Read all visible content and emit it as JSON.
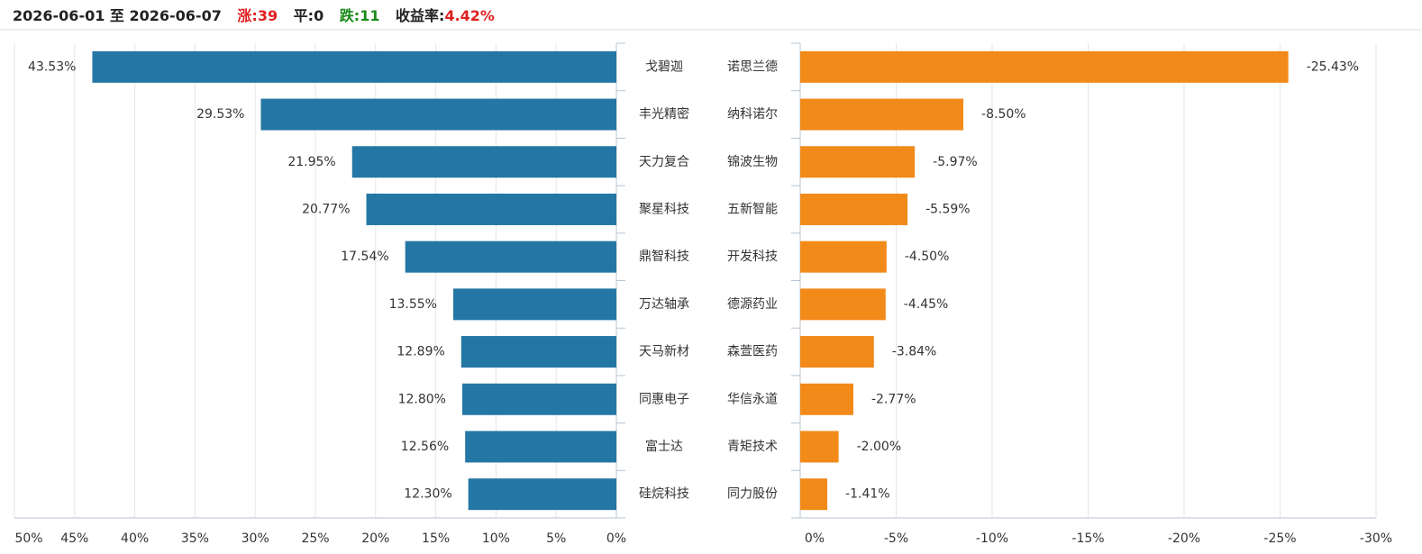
{
  "header": {
    "date_range": "2026-06-01 至 2026-06-07",
    "up": "涨:39",
    "flat": "平:0",
    "down": "跌:11",
    "return_label": "收益率:",
    "return_value": "4.42%"
  },
  "chart_data": [
    {
      "type": "bar",
      "orientation": "horizontal",
      "color": "#2477a4",
      "grid": true,
      "categories": [
        "戈碧迦",
        "丰光精密",
        "天力复合",
        "聚星科技",
        "鼎智科技",
        "万达轴承",
        "天马新材",
        "同惠电子",
        "富士达",
        "硅烷科技"
      ],
      "values": [
        43.53,
        29.53,
        21.95,
        20.77,
        17.54,
        13.55,
        12.89,
        12.8,
        12.56,
        12.3
      ],
      "value_labels": [
        "43.53%",
        "29.53%",
        "21.95%",
        "20.77%",
        "17.54%",
        "13.55%",
        "12.89%",
        "12.80%",
        "12.56%",
        "12.30%"
      ],
      "xlim": [
        50,
        0
      ],
      "xticks": [
        {
          "value": 50,
          "label": "50%"
        },
        {
          "value": 45,
          "label": "45%"
        },
        {
          "value": 40,
          "label": "40%"
        },
        {
          "value": 35,
          "label": "35%"
        },
        {
          "value": 30,
          "label": "30%"
        },
        {
          "value": 25,
          "label": "25%"
        },
        {
          "value": 20,
          "label": "20%"
        },
        {
          "value": 15,
          "label": "15%"
        },
        {
          "value": 10,
          "label": "10%"
        },
        {
          "value": 5,
          "label": "5%"
        },
        {
          "value": 0,
          "label": "0%"
        }
      ]
    },
    {
      "type": "bar",
      "orientation": "horizontal",
      "color": "#f28a1a",
      "grid": true,
      "categories": [
        "诺思兰德",
        "纳科诺尔",
        "锦波生物",
        "五新智能",
        "开发科技",
        "德源药业",
        "森萱医药",
        "华信永道",
        "青矩技术",
        "同力股份"
      ],
      "values": [
        -25.43,
        -8.5,
        -5.97,
        -5.59,
        -4.5,
        -4.45,
        -3.84,
        -2.77,
        -2.0,
        -1.41
      ],
      "value_labels": [
        "-25.43%",
        "-8.50%",
        "-5.97%",
        "-5.59%",
        "-4.50%",
        "-4.45%",
        "-3.84%",
        "-2.77%",
        "-2.00%",
        "-1.41%"
      ],
      "xlim": [
        0,
        -30
      ],
      "xticks": [
        {
          "value": 0,
          "label": "0%"
        },
        {
          "value": -5,
          "label": "-5%"
        },
        {
          "value": -10,
          "label": "-10%"
        },
        {
          "value": -15,
          "label": "-15%"
        },
        {
          "value": -20,
          "label": "-20%"
        },
        {
          "value": -25,
          "label": "-25%"
        },
        {
          "value": -30,
          "label": "-30%"
        }
      ]
    }
  ]
}
